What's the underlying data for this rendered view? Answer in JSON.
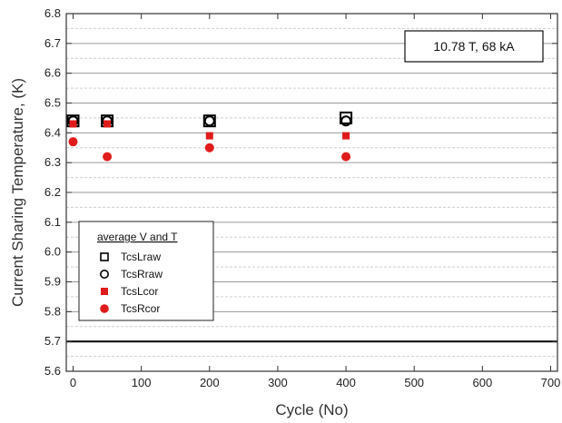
{
  "chart_data": {
    "type": "scatter",
    "title": "",
    "xlabel": "Cycle (No)",
    "ylabel": "Current Sharing Temperature, (K)",
    "xlim": [
      -10,
      710
    ],
    "ylim": [
      5.6,
      6.8
    ],
    "x_ticks": [
      0,
      100,
      200,
      300,
      400,
      500,
      600,
      700
    ],
    "y_ticks": [
      5.6,
      5.7,
      5.8,
      5.9,
      6.0,
      6.1,
      6.2,
      6.3,
      6.4,
      6.5,
      6.6,
      6.7,
      6.8
    ],
    "y_tick_labels": [
      "5.6",
      "5.7",
      "5.8",
      "5.9",
      "6.0",
      "6.1",
      "6.2",
      "6.3",
      "6.4",
      "6.5",
      "6.6",
      "6.7",
      "6.8"
    ],
    "grid": "horizontal",
    "reference_line": 5.7,
    "annotation": "10.78 T, 68 kA",
    "legend": {
      "title": "average V and T",
      "position": "bottom-left"
    },
    "series": [
      {
        "name": "TcsLraw",
        "marker": "open-square",
        "color": "#000000",
        "x": [
          0,
          50,
          200,
          400
        ],
        "y": [
          6.44,
          6.44,
          6.44,
          6.45
        ]
      },
      {
        "name": "TcsRraw",
        "marker": "open-circle",
        "color": "#000000",
        "x": [
          0,
          50,
          200,
          400
        ],
        "y": [
          6.44,
          6.44,
          6.44,
          6.44
        ]
      },
      {
        "name": "TcsLcor",
        "marker": "filled-square",
        "color": "#e01b1b",
        "x": [
          0,
          50,
          200,
          400
        ],
        "y": [
          6.43,
          6.43,
          6.39,
          6.39
        ]
      },
      {
        "name": "TcsRcor",
        "marker": "filled-circle",
        "color": "#e01b1b",
        "x": [
          0,
          50,
          200,
          400
        ],
        "y": [
          6.37,
          6.32,
          6.35,
          6.32
        ]
      }
    ]
  }
}
